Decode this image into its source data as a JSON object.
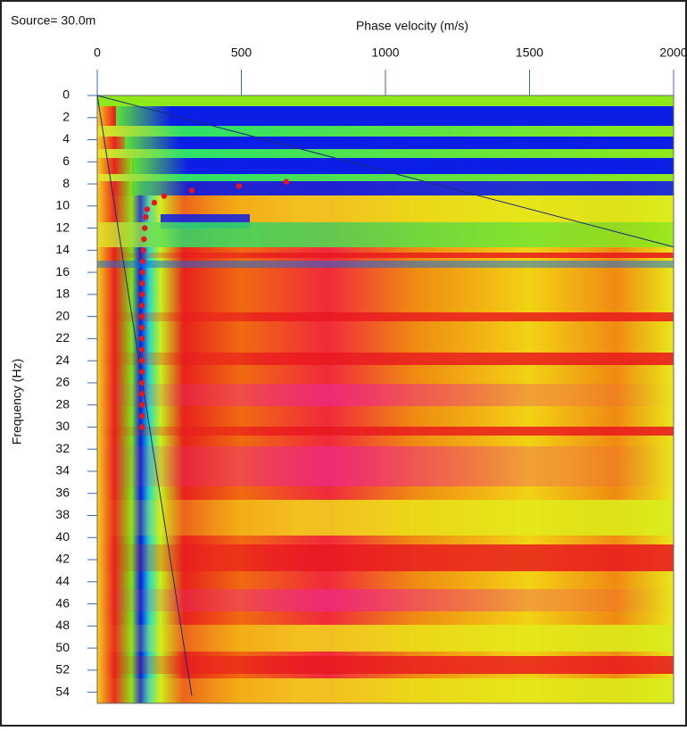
{
  "chart_data": {
    "type": "scatter",
    "title": "Source= 30.0m",
    "x_label": "Phase velocity (m/s)",
    "y_label": "Frequency (Hz)",
    "xlim": [
      0,
      2000
    ],
    "xticks": [
      0,
      500,
      1000,
      1500,
      2000
    ],
    "ylim": [
      0,
      55
    ],
    "yticks": [
      0,
      2,
      4,
      6,
      8,
      10,
      12,
      14,
      16,
      18,
      20,
      22,
      24,
      26,
      28,
      30,
      32,
      34,
      36,
      38,
      40,
      42,
      44,
      46,
      48,
      50,
      52,
      54
    ],
    "y_inverted": true,
    "series": [
      {
        "color": "#e8141e",
        "x": [
          656,
          492,
          328,
          232,
          198,
          173,
          168,
          165,
          162,
          160,
          158,
          157,
          156,
          156,
          155,
          155,
          155,
          155,
          155,
          155,
          155,
          155,
          155,
          155,
          155,
          155
        ],
        "y": [
          7.8,
          8.2,
          8.6,
          9.1,
          9.7,
          10.3,
          11,
          12,
          13,
          14,
          15,
          16,
          17,
          18,
          19,
          20,
          21,
          22,
          23,
          24,
          25,
          26,
          27,
          28,
          29,
          30
        ]
      }
    ],
    "reference_lines": [
      {
        "color": "#1a2a7a",
        "x": [
          0,
          2000
        ],
        "y": [
          0,
          13.7
        ]
      },
      {
        "color": "#1a2a7a",
        "x": [
          0,
          328
        ],
        "y": [
          0,
          54.3
        ]
      }
    ]
  }
}
